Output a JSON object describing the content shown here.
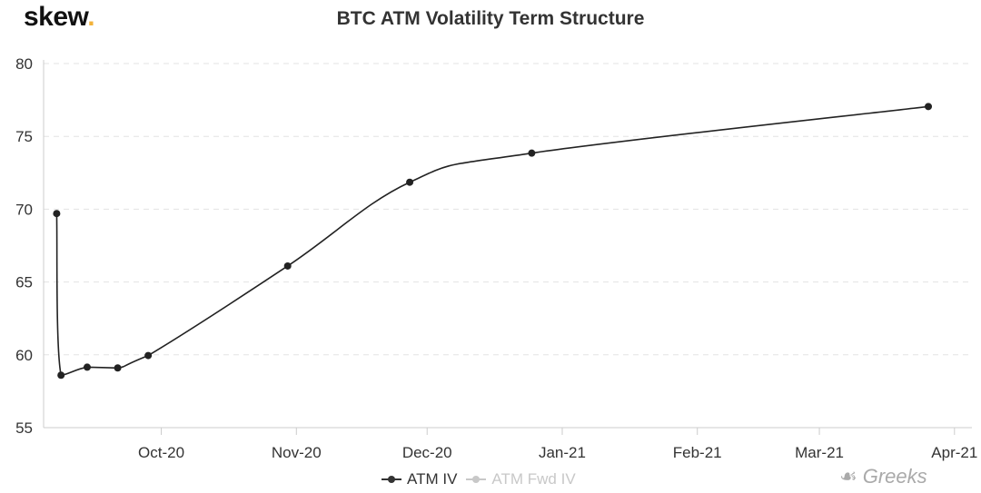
{
  "brand": {
    "name": "skew",
    "dot": "."
  },
  "watermark": {
    "icon": "wechat-icon",
    "text": "Greeks"
  },
  "colors": {
    "series": "#222222",
    "grid": "#e3e3e3",
    "axis": "#cccccc",
    "legend_off": "#c8c8c8",
    "brand_dot": "#f2b23a"
  },
  "chart_data": {
    "type": "line",
    "title": "BTC ATM Volatility Term Structure",
    "xlabel": "",
    "ylabel": "",
    "ylim": [
      55,
      80
    ],
    "yticks": [
      55,
      60,
      65,
      70,
      75,
      80
    ],
    "xlim": [
      "2020-09-04",
      "2021-04-05"
    ],
    "xticks": [
      {
        "date": "2020-10-01",
        "label": "Oct-20"
      },
      {
        "date": "2020-11-01",
        "label": "Nov-20"
      },
      {
        "date": "2020-12-01",
        "label": "Dec-20"
      },
      {
        "date": "2021-01-01",
        "label": "Jan-21"
      },
      {
        "date": "2021-02-01",
        "label": "Feb-21"
      },
      {
        "date": "2021-03-01",
        "label": "Mar-21"
      },
      {
        "date": "2021-04-01",
        "label": "Apr-21"
      }
    ],
    "grid": "horizontal dashed",
    "legend_position": "bottom",
    "series": [
      {
        "name": "ATM IV",
        "visible": true,
        "points": [
          {
            "x": "2020-09-07",
            "y": 69.7
          },
          {
            "x": "2020-09-08",
            "y": 58.6
          },
          {
            "x": "2020-09-14",
            "y": 59.15
          },
          {
            "x": "2020-09-21",
            "y": 59.1
          },
          {
            "x": "2020-09-28",
            "y": 59.95
          },
          {
            "x": "2020-10-30",
            "y": 66.1
          },
          {
            "x": "2020-11-27",
            "y": 71.85
          },
          {
            "x": "2020-12-25",
            "y": 73.85
          },
          {
            "x": "2021-03-26",
            "y": 77.05
          }
        ]
      },
      {
        "name": "ATM Fwd IV",
        "visible": false,
        "points": []
      }
    ]
  }
}
